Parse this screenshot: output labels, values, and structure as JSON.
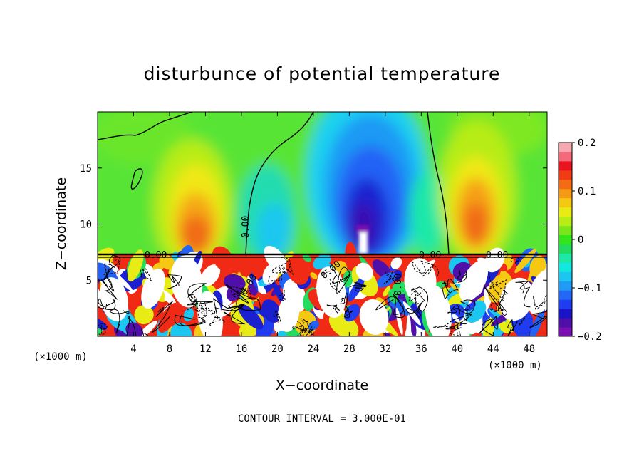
{
  "chart_data": {
    "type": "heatmap",
    "title": "disturbunce of potential temperature",
    "xlabel": "X−coordinate",
    "ylabel": "Z−coordinate",
    "x_unit": "(×1000 m)",
    "z_unit": "(×1000 m)",
    "xlim": [
      0,
      50
    ],
    "ylim": [
      0,
      20
    ],
    "x_ticks": [
      4,
      8,
      12,
      16,
      20,
      24,
      28,
      32,
      36,
      40,
      44,
      48
    ],
    "y_ticks": [
      5,
      10,
      15
    ],
    "colorbar": {
      "range": [
        -0.2,
        0.2
      ],
      "tick_labels": [
        "0.2",
        "0.1",
        "0",
        "−0.1",
        "−0.2"
      ],
      "tick_values": [
        0.2,
        0.1,
        0,
        -0.1,
        -0.2
      ],
      "colors": [
        "#7a0fb3",
        "#4f0fa8",
        "#1a14c8",
        "#1f3cf0",
        "#2268f5",
        "#1f9af5",
        "#1bc7f0",
        "#12e8e0",
        "#1ee8a8",
        "#22dc60",
        "#33e61a",
        "#7ae61a",
        "#b8ec14",
        "#e8ec14",
        "#f5c814",
        "#f59a14",
        "#f56a14",
        "#f03c14",
        "#e81420",
        "#f56a7a",
        "#f5a8b0"
      ]
    },
    "contour_labels": [
      "0.00",
      "0.00",
      "0.00",
      "0.00",
      "0.00",
      "0.00",
      "0.00"
    ],
    "footnote": "CONTOUR INTERVAL = 3.000E-01",
    "grid": false
  }
}
